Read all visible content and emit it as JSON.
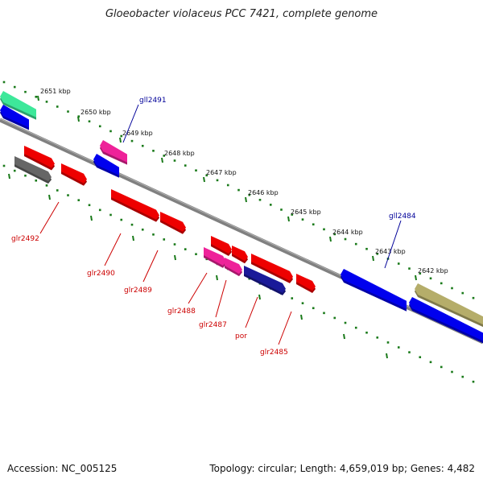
{
  "title": "Gloeobacter violaceus PCC 7421, complete genome",
  "footer": {
    "accession": "Accession: NC_005125",
    "stats": "Topology: circular; Length: 4,659,019 bp; Genes: 4,482"
  },
  "scale": {
    "unit": "kbp",
    "ticks": [
      "2651 kbp",
      "2650 kbp",
      "2649 kbp",
      "2648 kbp",
      "2647 kbp",
      "2646 kbp",
      "2645 kbp",
      "2644 kbp",
      "2643 kbp",
      "2642 kbp"
    ]
  },
  "colors": {
    "reverse_label": "#000099",
    "forward_label": "#cc0000",
    "backbone": "#808080",
    "tick": "#1a7a1a"
  },
  "genes_reverse": [
    {
      "label": "",
      "color": "#3de89a"
    },
    {
      "label": "",
      "color": "#0000ee"
    },
    {
      "label": "",
      "color": "#ee2299"
    },
    {
      "label": "gll2491",
      "color": "#0000ee"
    },
    {
      "label": "gll2484",
      "color": "#0000ee"
    },
    {
      "label": "",
      "color": "#b5ad6a"
    },
    {
      "label": "",
      "color": "#0000ee"
    }
  ],
  "genes_forward": [
    {
      "label": "",
      "color": "#ee0000"
    },
    {
      "label": "",
      "color": "#666666"
    },
    {
      "label": "glr2492",
      "color": "#ee0000"
    },
    {
      "label": "glr2490",
      "color": "#ee0000"
    },
    {
      "label": "glr2489",
      "color": "#ee0000"
    },
    {
      "label": "",
      "color": "#ee0000"
    },
    {
      "label": "glr2488",
      "color": "#ee2299"
    },
    {
      "label": "glr2487",
      "color": "#ee2299"
    },
    {
      "label": "por",
      "color": "#ee0000"
    },
    {
      "label": "",
      "color": "#1a1a99"
    },
    {
      "label": "glr2485",
      "color": "#ee0000"
    }
  ]
}
